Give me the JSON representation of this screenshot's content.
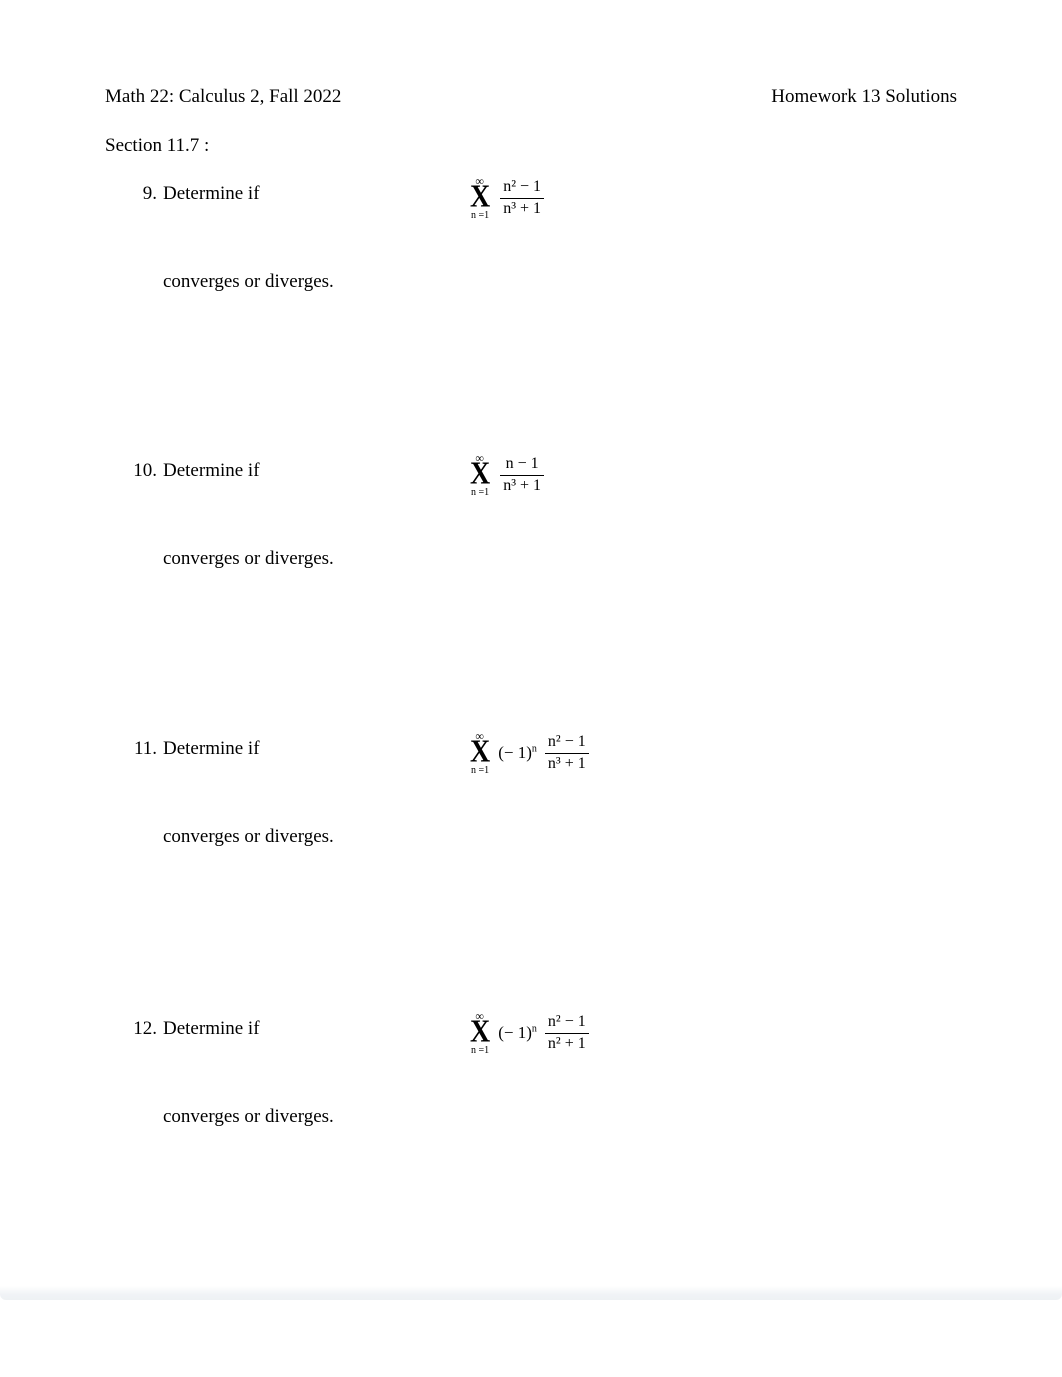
{
  "header": {
    "course": "Math 22: Calculus 2, Fall 2022",
    "title": "Homework 13 Solutions"
  },
  "section": "Section 11.7   :",
  "sigma": {
    "upper": "∞",
    "symbol": "X",
    "lower": "n =1"
  },
  "problems": {
    "p9": {
      "number": "9.",
      "lead": "Determine if",
      "frac_top": "n² − 1",
      "frac_bot": "n³ + 1",
      "tail": "converges or diverges."
    },
    "p10": {
      "number": "10.",
      "lead": "Determine if",
      "frac_top": "n − 1",
      "frac_bot": "n³ + 1",
      "tail": "converges or diverges."
    },
    "p11": {
      "number": "11.",
      "lead": "Determine if",
      "coef": "(− 1)",
      "coef_sup": "n",
      "frac_top": "n² − 1",
      "frac_bot": "n³ + 1",
      "tail": "converges or diverges."
    },
    "p12": {
      "number": "12.",
      "lead": "Determine if",
      "coef": "(− 1)",
      "coef_sup": "n",
      "frac_top": "n² − 1",
      "frac_bot": "n² + 1",
      "tail": "converges or diverges."
    }
  }
}
